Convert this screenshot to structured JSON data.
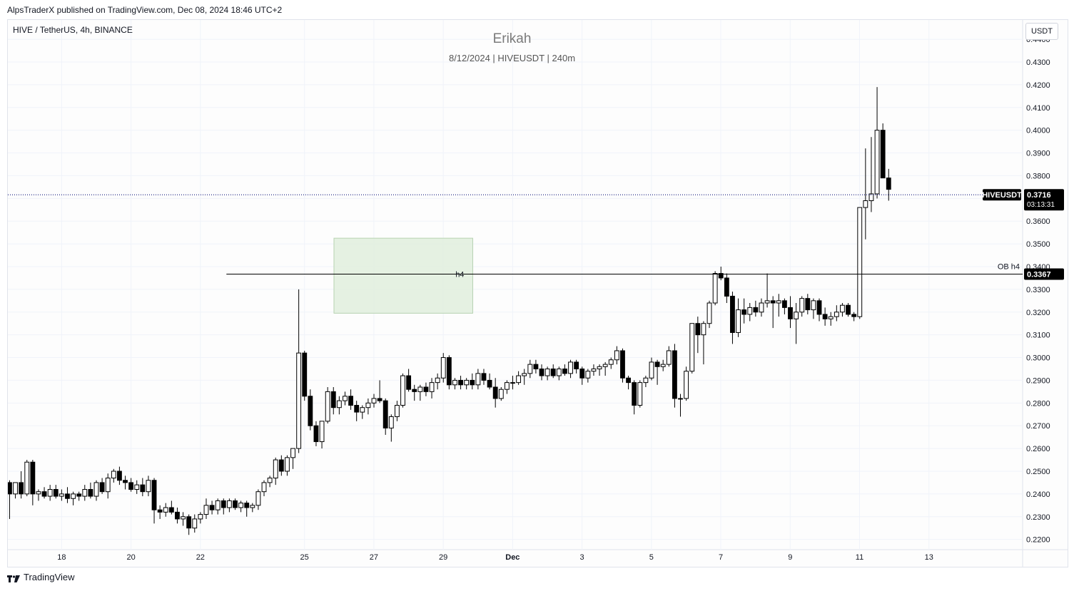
{
  "header": {
    "publish_line": "AlpsTraderX published on TradingView.com, Dec 08, 2024 18:46 UTC+2"
  },
  "legend": {
    "symbol_line": "HIVE / TetherUS, 4h, BINANCE"
  },
  "watermark": {
    "title": "Erikah",
    "subtitle": "8/12/2024 | HIVEUSDT | 240m"
  },
  "price_scale": {
    "currency_button": "USDT"
  },
  "footer": {
    "brand": "TradingView"
  },
  "colors": {
    "up_fill": "#ffffff",
    "down_fill": "#000000",
    "candle_border": "#000000",
    "zone_fill": "#e1eedd",
    "zone_border": "#b7d2b1",
    "price_line": "#2a2e8a",
    "grid": "#f0f3fa"
  },
  "chart_data": {
    "type": "candlestick",
    "y_ticks": [
      "0.2200",
      "0.2300",
      "0.2400",
      "0.2500",
      "0.2600",
      "0.2700",
      "0.2800",
      "0.2900",
      "0.3000",
      "0.3100",
      "0.3200",
      "0.3300",
      "0.3400",
      "0.3500",
      "0.3600",
      "0.3700",
      "0.3800",
      "0.3900",
      "0.4000",
      "0.4100",
      "0.4200",
      "0.4300",
      "0.4400"
    ],
    "ylim": [
      0.2155,
      0.4485
    ],
    "x_ticks": [
      {
        "label": "18",
        "t": 0
      },
      {
        "label": "20",
        "t": 2
      },
      {
        "label": "22",
        "t": 4
      },
      {
        "label": "25",
        "t": 7
      },
      {
        "label": "27",
        "t": 9
      },
      {
        "label": "29",
        "t": 11
      },
      {
        "label": "Dec",
        "t": 13,
        "bold": true
      },
      {
        "label": "3",
        "t": 15
      },
      {
        "label": "5",
        "t": 17
      },
      {
        "label": "7",
        "t": 19
      },
      {
        "label": "9",
        "t": 21
      },
      {
        "label": "11",
        "t": 23
      },
      {
        "label": "13",
        "t": 25
      }
    ],
    "x_unit": "days",
    "xlim": [
      -1.55,
      27.7
    ],
    "start_t": -1.5,
    "bar_step_days": 0.1667,
    "candles": [
      [
        0.245,
        0.246,
        0.229,
        0.24
      ],
      [
        0.24,
        0.245,
        0.238,
        0.245
      ],
      [
        0.245,
        0.25,
        0.238,
        0.24
      ],
      [
        0.24,
        0.255,
        0.239,
        0.254
      ],
      [
        0.254,
        0.255,
        0.235,
        0.24
      ],
      [
        0.24,
        0.242,
        0.237,
        0.241
      ],
      [
        0.241,
        0.243,
        0.238,
        0.239
      ],
      [
        0.239,
        0.244,
        0.237,
        0.242
      ],
      [
        0.242,
        0.244,
        0.238,
        0.239
      ],
      [
        0.239,
        0.242,
        0.237,
        0.24
      ],
      [
        0.24,
        0.243,
        0.236,
        0.238
      ],
      [
        0.238,
        0.241,
        0.235,
        0.24
      ],
      [
        0.24,
        0.241,
        0.237,
        0.239
      ],
      [
        0.239,
        0.244,
        0.237,
        0.242
      ],
      [
        0.242,
        0.245,
        0.238,
        0.239
      ],
      [
        0.239,
        0.246,
        0.237,
        0.245
      ],
      [
        0.245,
        0.247,
        0.24,
        0.241
      ],
      [
        0.241,
        0.249,
        0.238,
        0.247
      ],
      [
        0.247,
        0.251,
        0.245,
        0.25
      ],
      [
        0.25,
        0.252,
        0.244,
        0.246
      ],
      [
        0.246,
        0.248,
        0.242,
        0.245
      ],
      [
        0.245,
        0.247,
        0.241,
        0.242
      ],
      [
        0.242,
        0.246,
        0.24,
        0.244
      ],
      [
        0.244,
        0.247,
        0.239,
        0.241
      ],
      [
        0.241,
        0.248,
        0.239,
        0.246
      ],
      [
        0.246,
        0.247,
        0.227,
        0.233
      ],
      [
        0.233,
        0.235,
        0.229,
        0.232
      ],
      [
        0.232,
        0.236,
        0.23,
        0.234
      ],
      [
        0.234,
        0.237,
        0.231,
        0.232
      ],
      [
        0.232,
        0.234,
        0.227,
        0.229
      ],
      [
        0.229,
        0.232,
        0.226,
        0.23
      ],
      [
        0.23,
        0.231,
        0.222,
        0.225
      ],
      [
        0.225,
        0.231,
        0.223,
        0.229
      ],
      [
        0.229,
        0.232,
        0.227,
        0.231
      ],
      [
        0.231,
        0.238,
        0.229,
        0.235
      ],
      [
        0.235,
        0.237,
        0.231,
        0.233
      ],
      [
        0.233,
        0.238,
        0.231,
        0.237
      ],
      [
        0.237,
        0.238,
        0.231,
        0.234
      ],
      [
        0.234,
        0.238,
        0.232,
        0.237
      ],
      [
        0.237,
        0.238,
        0.233,
        0.234
      ],
      [
        0.234,
        0.237,
        0.232,
        0.236
      ],
      [
        0.236,
        0.237,
        0.23,
        0.234
      ],
      [
        0.234,
        0.236,
        0.232,
        0.235
      ],
      [
        0.235,
        0.242,
        0.233,
        0.241
      ],
      [
        0.241,
        0.246,
        0.239,
        0.245
      ],
      [
        0.245,
        0.248,
        0.243,
        0.247
      ],
      [
        0.247,
        0.256,
        0.244,
        0.255
      ],
      [
        0.255,
        0.257,
        0.248,
        0.25
      ],
      [
        0.25,
        0.257,
        0.248,
        0.256
      ],
      [
        0.256,
        0.26,
        0.251,
        0.26
      ],
      [
        0.26,
        0.33,
        0.258,
        0.302
      ],
      [
        0.302,
        0.303,
        0.281,
        0.283
      ],
      [
        0.283,
        0.286,
        0.268,
        0.27
      ],
      [
        0.27,
        0.272,
        0.261,
        0.263
      ],
      [
        0.263,
        0.272,
        0.26,
        0.272
      ],
      [
        0.272,
        0.287,
        0.271,
        0.285
      ],
      [
        0.285,
        0.287,
        0.275,
        0.278
      ],
      [
        0.278,
        0.283,
        0.275,
        0.281
      ],
      [
        0.281,
        0.285,
        0.279,
        0.283
      ],
      [
        0.283,
        0.286,
        0.277,
        0.279
      ],
      [
        0.279,
        0.281,
        0.272,
        0.276
      ],
      [
        0.276,
        0.279,
        0.273,
        0.278
      ],
      [
        0.278,
        0.282,
        0.275,
        0.28
      ],
      [
        0.28,
        0.284,
        0.278,
        0.282
      ],
      [
        0.282,
        0.29,
        0.28,
        0.281
      ],
      [
        0.281,
        0.282,
        0.266,
        0.269
      ],
      [
        0.269,
        0.275,
        0.263,
        0.274
      ],
      [
        0.274,
        0.281,
        0.272,
        0.279
      ],
      [
        0.279,
        0.293,
        0.278,
        0.292
      ],
      [
        0.292,
        0.295,
        0.285,
        0.286
      ],
      [
        0.286,
        0.288,
        0.281,
        0.285
      ],
      [
        0.285,
        0.288,
        0.281,
        0.287
      ],
      [
        0.287,
        0.289,
        0.283,
        0.285
      ],
      [
        0.285,
        0.291,
        0.282,
        0.289
      ],
      [
        0.289,
        0.293,
        0.286,
        0.291
      ],
      [
        0.291,
        0.302,
        0.289,
        0.3
      ],
      [
        0.3,
        0.301,
        0.286,
        0.288
      ],
      [
        0.288,
        0.291,
        0.286,
        0.29
      ],
      [
        0.29,
        0.292,
        0.286,
        0.288
      ],
      [
        0.288,
        0.291,
        0.286,
        0.29
      ],
      [
        0.29,
        0.293,
        0.286,
        0.288
      ],
      [
        0.288,
        0.295,
        0.286,
        0.293
      ],
      [
        0.293,
        0.295,
        0.288,
        0.29
      ],
      [
        0.29,
        0.293,
        0.286,
        0.287
      ],
      [
        0.287,
        0.291,
        0.278,
        0.282
      ],
      [
        0.282,
        0.287,
        0.281,
        0.286
      ],
      [
        0.286,
        0.29,
        0.284,
        0.289
      ],
      [
        0.289,
        0.292,
        0.286,
        0.289
      ],
      [
        0.289,
        0.294,
        0.288,
        0.292
      ],
      [
        0.292,
        0.295,
        0.288,
        0.293
      ],
      [
        0.293,
        0.299,
        0.291,
        0.297
      ],
      [
        0.297,
        0.299,
        0.293,
        0.295
      ],
      [
        0.295,
        0.297,
        0.29,
        0.292
      ],
      [
        0.292,
        0.296,
        0.29,
        0.295
      ],
      [
        0.295,
        0.297,
        0.291,
        0.292
      ],
      [
        0.292,
        0.296,
        0.29,
        0.295
      ],
      [
        0.295,
        0.297,
        0.292,
        0.293
      ],
      [
        0.293,
        0.299,
        0.291,
        0.298
      ],
      [
        0.298,
        0.299,
        0.293,
        0.295
      ],
      [
        0.295,
        0.296,
        0.288,
        0.291
      ],
      [
        0.291,
        0.295,
        0.289,
        0.294
      ],
      [
        0.294,
        0.297,
        0.292,
        0.295
      ],
      [
        0.295,
        0.297,
        0.292,
        0.296
      ],
      [
        0.296,
        0.298,
        0.292,
        0.297
      ],
      [
        0.297,
        0.3,
        0.295,
        0.299
      ],
      [
        0.299,
        0.305,
        0.297,
        0.303
      ],
      [
        0.303,
        0.304,
        0.289,
        0.291
      ],
      [
        0.291,
        0.292,
        0.286,
        0.289
      ],
      [
        0.289,
        0.29,
        0.275,
        0.279
      ],
      [
        0.279,
        0.29,
        0.278,
        0.289
      ],
      [
        0.289,
        0.292,
        0.287,
        0.291
      ],
      [
        0.291,
        0.3,
        0.29,
        0.298
      ],
      [
        0.298,
        0.299,
        0.288,
        0.296
      ],
      [
        0.296,
        0.299,
        0.294,
        0.297
      ],
      [
        0.297,
        0.305,
        0.296,
        0.303
      ],
      [
        0.303,
        0.306,
        0.278,
        0.282
      ],
      [
        0.282,
        0.284,
        0.274,
        0.282
      ],
      [
        0.282,
        0.296,
        0.281,
        0.294
      ],
      [
        0.294,
        0.315,
        0.293,
        0.315
      ],
      [
        0.315,
        0.318,
        0.302,
        0.31
      ],
      [
        0.31,
        0.316,
        0.297,
        0.315
      ],
      [
        0.315,
        0.325,
        0.313,
        0.324
      ],
      [
        0.324,
        0.338,
        0.323,
        0.337
      ],
      [
        0.337,
        0.34,
        0.334,
        0.335
      ],
      [
        0.335,
        0.337,
        0.324,
        0.327
      ],
      [
        0.327,
        0.329,
        0.306,
        0.311
      ],
      [
        0.311,
        0.326,
        0.309,
        0.321
      ],
      [
        0.321,
        0.326,
        0.315,
        0.319
      ],
      [
        0.319,
        0.324,
        0.316,
        0.322
      ],
      [
        0.322,
        0.325,
        0.318,
        0.32
      ],
      [
        0.32,
        0.326,
        0.318,
        0.324
      ],
      [
        0.324,
        0.337,
        0.322,
        0.325
      ],
      [
        0.325,
        0.327,
        0.313,
        0.324
      ],
      [
        0.324,
        0.328,
        0.318,
        0.325
      ],
      [
        0.325,
        0.326,
        0.319,
        0.322
      ],
      [
        0.322,
        0.327,
        0.313,
        0.317
      ],
      [
        0.317,
        0.324,
        0.306,
        0.32
      ],
      [
        0.32,
        0.327,
        0.318,
        0.326
      ],
      [
        0.326,
        0.328,
        0.319,
        0.321
      ],
      [
        0.321,
        0.326,
        0.317,
        0.325
      ],
      [
        0.325,
        0.326,
        0.316,
        0.319
      ],
      [
        0.319,
        0.322,
        0.314,
        0.317
      ],
      [
        0.317,
        0.32,
        0.314,
        0.318
      ],
      [
        0.318,
        0.323,
        0.316,
        0.32
      ],
      [
        0.32,
        0.324,
        0.318,
        0.323
      ],
      [
        0.323,
        0.324,
        0.318,
        0.319
      ],
      [
        0.319,
        0.32,
        0.316,
        0.318
      ],
      [
        0.318,
        0.366,
        0.317,
        0.366
      ],
      [
        0.366,
        0.392,
        0.352,
        0.369
      ],
      [
        0.369,
        0.397,
        0.364,
        0.372
      ],
      [
        0.372,
        0.419,
        0.37,
        0.4
      ],
      [
        0.4,
        0.403,
        0.379,
        0.379
      ],
      [
        0.379,
        0.383,
        0.369,
        0.374
      ]
    ],
    "current_price": {
      "label": "HIVEUSDT",
      "value": "0.3716",
      "countdown": "03:13:31",
      "y": 0.3716
    },
    "level_line": {
      "label": "OB h4",
      "value": "0.3367",
      "y": 0.3367,
      "from_t": 4.75,
      "inline_label": "h4"
    },
    "zone": {
      "t_start": 7.85,
      "t_end": 11.85,
      "y_low": 0.3195,
      "y_high": 0.3525
    }
  }
}
